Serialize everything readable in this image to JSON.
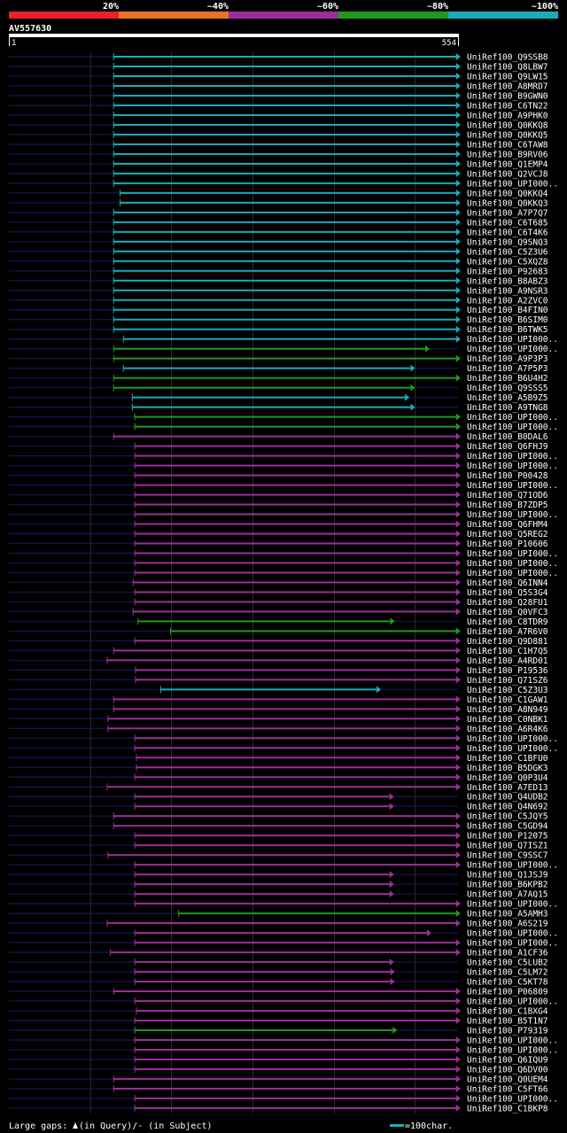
{
  "chart_data": {
    "type": "alignment-overview",
    "query_name": "AV557630",
    "query_start": "1",
    "query_end": "554",
    "query_length": 554,
    "legend": {
      "bins": [
        {
          "label": "20%",
          "color": "#e8212d"
        },
        {
          "label": "~40%",
          "color": "#ea7125"
        },
        {
          "label": "~60%",
          "color": "#9c2e9b"
        },
        {
          "label": "~80%",
          "color": "#1f9a1e"
        },
        {
          "label": "~100%",
          "color": "#1aacb8"
        }
      ]
    },
    "footer": {
      "gaps_label": "Large gaps:",
      "gaps_description": "(in Query)/- (in Subject)",
      "scale_label": "=100char."
    },
    "hits": [
      {
        "id": "UniRef100_Q9SSB8",
        "class": "c",
        "start": 130,
        "end": 556
      },
      {
        "id": "UniRef100_Q8LBW7",
        "class": "c",
        "start": 130,
        "end": 556
      },
      {
        "id": "UniRef100_Q9LW15",
        "class": "c",
        "start": 130,
        "end": 556
      },
      {
        "id": "UniRef100_A8MRD7",
        "class": "c",
        "start": 130,
        "end": 556
      },
      {
        "id": "UniRef100_B9GWN0",
        "class": "c",
        "start": 130,
        "end": 556
      },
      {
        "id": "UniRef100_C6TN22",
        "class": "c",
        "start": 130,
        "end": 556
      },
      {
        "id": "UniRef100_A9PHK0",
        "class": "c",
        "start": 130,
        "end": 556
      },
      {
        "id": "UniRef100_Q0KKQ8",
        "class": "c",
        "start": 130,
        "end": 556
      },
      {
        "id": "UniRef100_Q0KKQ5",
        "class": "c",
        "start": 130,
        "end": 556
      },
      {
        "id": "UniRef100_C6TAW8",
        "class": "c",
        "start": 130,
        "end": 556
      },
      {
        "id": "UniRef100_B9RV06",
        "class": "c",
        "start": 130,
        "end": 556
      },
      {
        "id": "UniRef100_Q1EMP4",
        "class": "c",
        "start": 130,
        "end": 556
      },
      {
        "id": "UniRef100_Q2VCJ8",
        "class": "c",
        "start": 130,
        "end": 556
      },
      {
        "id": "UniRef100_UPI000..",
        "class": "c",
        "start": 130,
        "end": 556
      },
      {
        "id": "UniRef100_Q0KKQ4",
        "class": "c",
        "start": 138,
        "end": 556
      },
      {
        "id": "UniRef100_Q0KKQ3",
        "class": "c",
        "start": 138,
        "end": 556
      },
      {
        "id": "UniRef100_A7P7Q7",
        "class": "c",
        "start": 130,
        "end": 556
      },
      {
        "id": "UniRef100_C6T685",
        "class": "c",
        "start": 130,
        "end": 556
      },
      {
        "id": "UniRef100_C6T4K6",
        "class": "c",
        "start": 130,
        "end": 556
      },
      {
        "id": "UniRef100_Q9SNQ3",
        "class": "c",
        "start": 130,
        "end": 556
      },
      {
        "id": "UniRef100_C5Z3U6",
        "class": "c",
        "start": 130,
        "end": 556
      },
      {
        "id": "UniRef100_C5XQZ8",
        "class": "c",
        "start": 130,
        "end": 556
      },
      {
        "id": "UniRef100_P92683",
        "class": "c",
        "start": 130,
        "end": 556
      },
      {
        "id": "UniRef100_B8ABZ3",
        "class": "c",
        "start": 130,
        "end": 556
      },
      {
        "id": "UniRef100_A9NSR3",
        "class": "c",
        "start": 130,
        "end": 556
      },
      {
        "id": "UniRef100_A2ZVC0",
        "class": "c",
        "start": 130,
        "end": 556
      },
      {
        "id": "UniRef100_B4FIN0",
        "class": "c",
        "start": 130,
        "end": 556
      },
      {
        "id": "UniRef100_B6SIM0",
        "class": "c",
        "start": 130,
        "end": 556
      },
      {
        "id": "UniRef100_B6TWK5",
        "class": "c",
        "start": 130,
        "end": 556
      },
      {
        "id": "UniRef100_UPI000..",
        "class": "c",
        "start": 142,
        "end": 556
      },
      {
        "id": "UniRef100_UPI000..",
        "class": "g",
        "start": 130,
        "end": 518
      },
      {
        "id": "UniRef100_A9P3P3",
        "class": "g",
        "start": 130,
        "end": 556
      },
      {
        "id": "UniRef100_A7P5P3",
        "class": "c",
        "start": 142,
        "end": 500
      },
      {
        "id": "UniRef100_B6U4H2",
        "class": "g",
        "start": 130,
        "end": 556
      },
      {
        "id": "UniRef100_Q9SSS5",
        "class": "g",
        "start": 130,
        "end": 500
      },
      {
        "id": "UniRef100_A5B9Z5",
        "class": "c",
        "start": 153,
        "end": 493
      },
      {
        "id": "UniRef100_A9TNG8",
        "class": "c",
        "start": 153,
        "end": 500
      },
      {
        "id": "UniRef100_UPI000..",
        "class": "g",
        "start": 156,
        "end": 556
      },
      {
        "id": "UniRef100_UPI000..",
        "class": "g",
        "start": 156,
        "end": 556
      },
      {
        "id": "UniRef100_B0DAL6",
        "class": "p",
        "start": 130,
        "end": 556
      },
      {
        "id": "UniRef100_Q6FHJ9",
        "class": "p",
        "start": 156,
        "end": 556
      },
      {
        "id": "UniRef100_UPI000..",
        "class": "p",
        "start": 156,
        "end": 556
      },
      {
        "id": "UniRef100_UPI000..",
        "class": "p",
        "start": 156,
        "end": 556
      },
      {
        "id": "UniRef100_P00428",
        "class": "p",
        "start": 156,
        "end": 556
      },
      {
        "id": "UniRef100_UPI000..",
        "class": "p",
        "start": 156,
        "end": 556
      },
      {
        "id": "UniRef100_Q71OD6",
        "class": "p",
        "start": 156,
        "end": 556
      },
      {
        "id": "UniRef100_B7ZDP5",
        "class": "p",
        "start": 156,
        "end": 556
      },
      {
        "id": "UniRef100_UPI000..",
        "class": "p",
        "start": 156,
        "end": 556
      },
      {
        "id": "UniRef100_Q6FHM4",
        "class": "p",
        "start": 156,
        "end": 556
      },
      {
        "id": "UniRef100_Q5REG2",
        "class": "p",
        "start": 156,
        "end": 556
      },
      {
        "id": "UniRef100_P10606",
        "class": "p",
        "start": 156,
        "end": 556
      },
      {
        "id": "UniRef100_UPI000..",
        "class": "p",
        "start": 156,
        "end": 556
      },
      {
        "id": "UniRef100_UPI000..",
        "class": "p",
        "start": 156,
        "end": 556
      },
      {
        "id": "UniRef100_UPI000..",
        "class": "p",
        "start": 156,
        "end": 556
      },
      {
        "id": "UniRef100_Q6INN4",
        "class": "p",
        "start": 154,
        "end": 556
      },
      {
        "id": "UniRef100_Q5S3G4",
        "class": "p",
        "start": 156,
        "end": 556
      },
      {
        "id": "UniRef100_Q28FU1",
        "class": "p",
        "start": 156,
        "end": 556
      },
      {
        "id": "UniRef100_Q0VFC3",
        "class": "p",
        "start": 154,
        "end": 556
      },
      {
        "id": "UniRef100_C8TDR9",
        "class": "g",
        "start": 160,
        "end": 475
      },
      {
        "id": "UniRef100_A7R6V0",
        "class": "g",
        "start": 200,
        "end": 556
      },
      {
        "id": "UniRef100_Q9D881",
        "class": "p",
        "start": 156,
        "end": 556
      },
      {
        "id": "UniRef100_C1H7Q5",
        "class": "p",
        "start": 130,
        "end": 556
      },
      {
        "id": "UniRef100_A4RD01",
        "class": "p",
        "start": 122,
        "end": 556
      },
      {
        "id": "UniRef100_P19536",
        "class": "p",
        "start": 157,
        "end": 556
      },
      {
        "id": "UniRef100_Q71SZ6",
        "class": "p",
        "start": 157,
        "end": 556
      },
      {
        "id": "UniRef100_C5Z3U3",
        "class": "c",
        "start": 188,
        "end": 458
      },
      {
        "id": "UniRef100_C1GAW1",
        "class": "p",
        "start": 130,
        "end": 556
      },
      {
        "id": "UniRef100_A8N949",
        "class": "p",
        "start": 130,
        "end": 556
      },
      {
        "id": "UniRef100_C0NBK1",
        "class": "p",
        "start": 123,
        "end": 556
      },
      {
        "id": "UniRef100_A6R4K6",
        "class": "p",
        "start": 123,
        "end": 556
      },
      {
        "id": "UniRef100_UPI000..",
        "class": "p",
        "start": 156,
        "end": 556
      },
      {
        "id": "UniRef100_UPI000..",
        "class": "p",
        "start": 156,
        "end": 556
      },
      {
        "id": "UniRef100_C1BFU0",
        "class": "p",
        "start": 158,
        "end": 556
      },
      {
        "id": "UniRef100_B5DGK3",
        "class": "p",
        "start": 158,
        "end": 556
      },
      {
        "id": "UniRef100_Q0P3U4",
        "class": "p",
        "start": 156,
        "end": 556
      },
      {
        "id": "UniRef100_A7ED13",
        "class": "p",
        "start": 122,
        "end": 556
      },
      {
        "id": "UniRef100_Q4UDB2",
        "class": "p",
        "start": 156,
        "end": 474
      },
      {
        "id": "UniRef100_Q4N692",
        "class": "p",
        "start": 156,
        "end": 474
      },
      {
        "id": "UniRef100_C5JQY5",
        "class": "p",
        "start": 130,
        "end": 556
      },
      {
        "id": "UniRef100_C5GD94",
        "class": "p",
        "start": 130,
        "end": 556
      },
      {
        "id": "UniRef100_P12075",
        "class": "p",
        "start": 156,
        "end": 556
      },
      {
        "id": "UniRef100_Q7ISZ1",
        "class": "p",
        "start": 156,
        "end": 556
      },
      {
        "id": "UniRef100_C9SSC7",
        "class": "p",
        "start": 123,
        "end": 556
      },
      {
        "id": "UniRef100_UPI000..",
        "class": "p",
        "start": 156,
        "end": 556
      },
      {
        "id": "UniRef100_Q1JSJ9",
        "class": "p",
        "start": 156,
        "end": 474
      },
      {
        "id": "UniRef100_B6KPB2",
        "class": "p",
        "start": 156,
        "end": 474
      },
      {
        "id": "UniRef100_A7AQ15",
        "class": "p",
        "start": 156,
        "end": 474
      },
      {
        "id": "UniRef100_UPI000..",
        "class": "p",
        "start": 156,
        "end": 556
      },
      {
        "id": "UniRef100_A5AMH3",
        "class": "g",
        "start": 210,
        "end": 556
      },
      {
        "id": "UniRef100_A6S219",
        "class": "p",
        "start": 122,
        "end": 556
      },
      {
        "id": "UniRef100_UPI000..",
        "class": "p",
        "start": 156,
        "end": 520
      },
      {
        "id": "UniRef100_UPI000..",
        "class": "p",
        "start": 156,
        "end": 556
      },
      {
        "id": "UniRef100_A1CF36",
        "class": "p",
        "start": 126,
        "end": 556
      },
      {
        "id": "UniRef100_C5LUB2",
        "class": "p",
        "start": 156,
        "end": 474
      },
      {
        "id": "UniRef100_C5LM72",
        "class": "p",
        "start": 156,
        "end": 475
      },
      {
        "id": "UniRef100_C5KT78",
        "class": "p",
        "start": 156,
        "end": 475
      },
      {
        "id": "UniRef100_P06809",
        "class": "p",
        "start": 130,
        "end": 556
      },
      {
        "id": "UniRef100_UPI000..",
        "class": "p",
        "start": 156,
        "end": 556
      },
      {
        "id": "UniRef100_C1BXG4",
        "class": "p",
        "start": 158,
        "end": 556
      },
      {
        "id": "UniRef100_B5T1N7",
        "class": "p",
        "start": 156,
        "end": 556
      },
      {
        "id": "UniRef100_P79319",
        "class": "g",
        "start": 156,
        "end": 478
      },
      {
        "id": "UniRef100_UPI000..",
        "class": "p",
        "start": 156,
        "end": 556
      },
      {
        "id": "UniRef100_UPI000..",
        "class": "p",
        "start": 156,
        "end": 556
      },
      {
        "id": "UniRef100_Q6IQU9",
        "class": "p",
        "start": 156,
        "end": 556
      },
      {
        "id": "UniRef100_Q6DV00",
        "class": "p",
        "start": 156,
        "end": 556
      },
      {
        "id": "UniRef100_Q0UEM4",
        "class": "p",
        "start": 130,
        "end": 556
      },
      {
        "id": "UniRef100_C5FT66",
        "class": "p",
        "start": 130,
        "end": 556
      },
      {
        "id": "UniRef100_UPI000..",
        "class": "p",
        "start": 156,
        "end": 556
      },
      {
        "id": "UniRef100_C1BKP8",
        "class": "p",
        "start": 156,
        "end": 556
      }
    ]
  }
}
